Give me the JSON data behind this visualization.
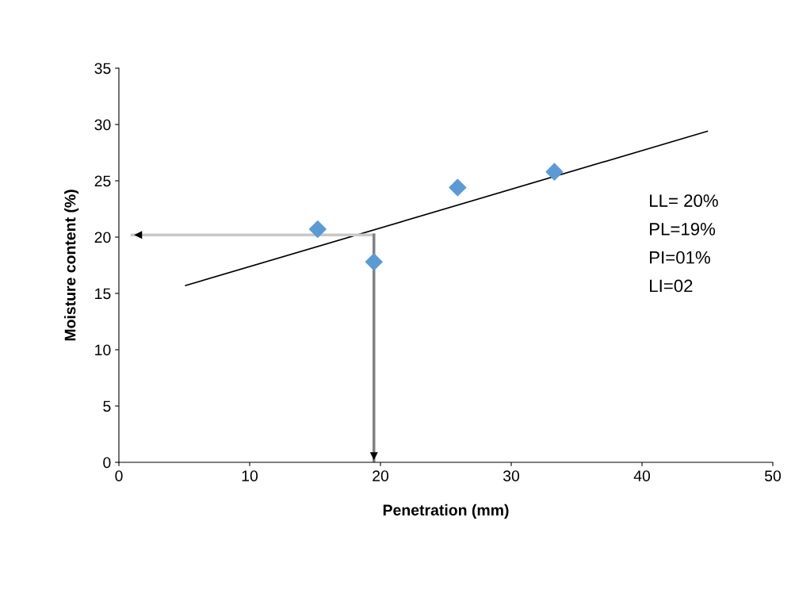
{
  "chart_data": {
    "type": "scatter",
    "xlabel": "Penetration (mm)",
    "ylabel": "Moisture content (%)",
    "xlim": [
      0,
      50
    ],
    "xticks": [
      0,
      10,
      20,
      30,
      40,
      50
    ],
    "ylim": [
      0,
      35
    ],
    "yticks": [
      0,
      5,
      10,
      15,
      20,
      25,
      30,
      35
    ],
    "grid": false,
    "marker": "diamond",
    "x": [
      15.2,
      19.5,
      25.9,
      33.3
    ],
    "series": [
      {
        "color": "#5b9bd5",
        "values": [
          20.7,
          17.8,
          24.4,
          25.8
        ]
      },
      {
        "type": "line",
        "color": "#000000",
        "x": [
          5.1,
          45
        ],
        "values": [
          15.7,
          29.4
        ],
        "marker": "none"
      },
      {
        "type": "line",
        "color": "#c8c8c8",
        "x": [
          19.5,
          1
        ],
        "values": [
          20.2,
          20.2
        ],
        "marker": "none"
      },
      {
        "type": "line",
        "color": "#808080",
        "x": [
          19.5,
          19.5
        ],
        "values": [
          20.2,
          0
        ],
        "marker": "none"
      }
    ],
    "annotations": [
      "LL= 20%",
      "PL=19%",
      "PI=01%",
      "LI=02"
    ]
  }
}
